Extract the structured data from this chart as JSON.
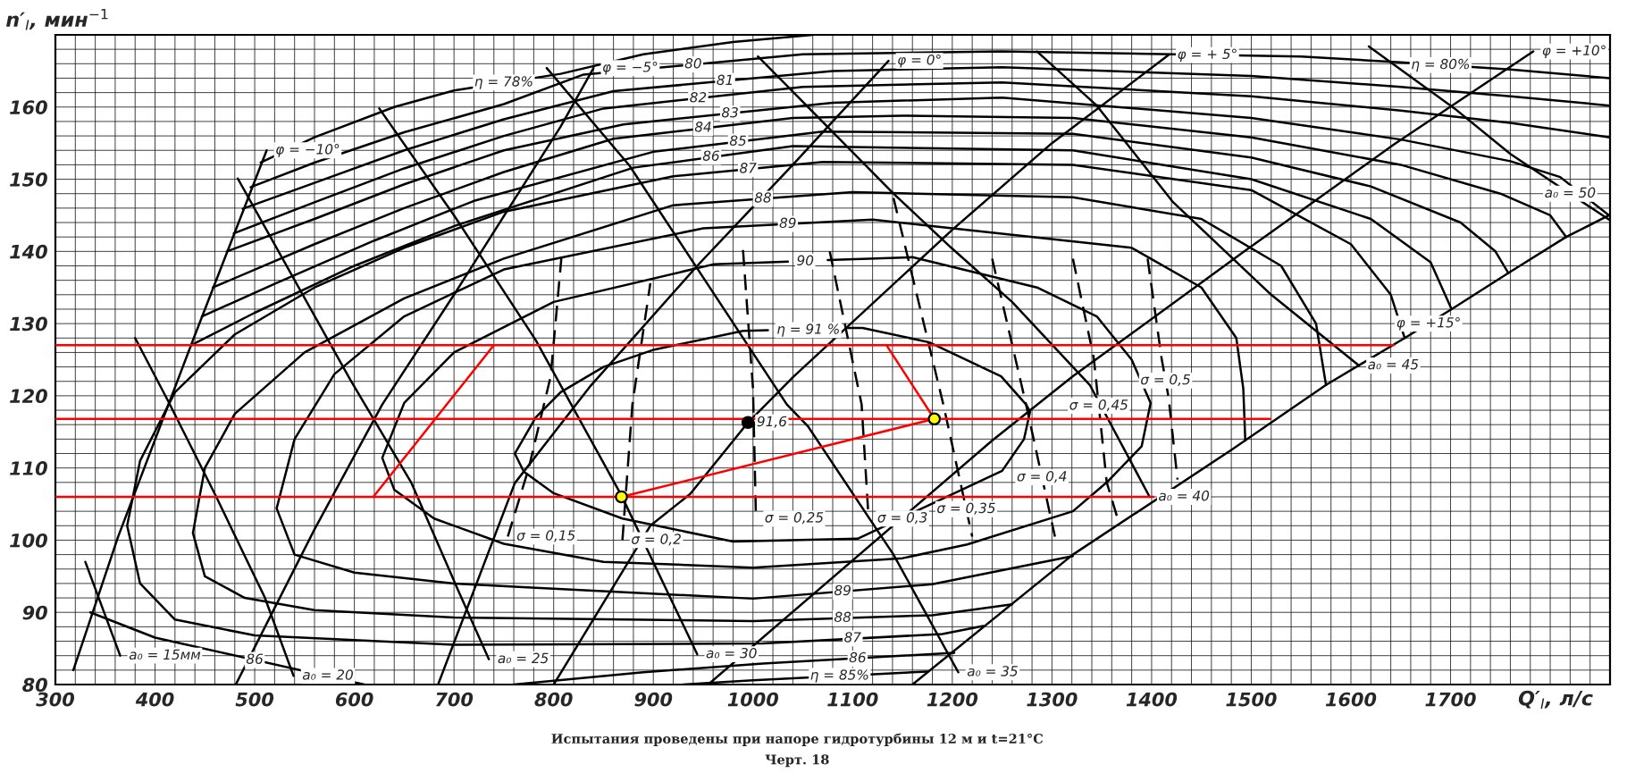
{
  "chart_data": {
    "type": "line",
    "xlabel": "Q′$_{I}$, л/с",
    "ylabel": "n′$_{I}$, мин$^{−1}$",
    "xlim": [
      300,
      1860
    ],
    "ylim": [
      80,
      170
    ],
    "grid": true,
    "xticks": [
      300,
      {
        "value": 320,
        "label": null
      },
      {
        "value": 340,
        "label": null
      },
      {
        "value": 360,
        "label": null
      },
      {
        "value": 380,
        "label": null
      },
      400,
      {
        "value": 420,
        "label": null
      },
      {
        "value": 440,
        "label": null
      },
      {
        "value": 460,
        "label": null
      },
      {
        "value": 480,
        "label": null
      },
      500,
      {
        "value": 520,
        "label": null
      },
      {
        "value": 540,
        "label": null
      },
      {
        "value": 560,
        "label": null
      },
      {
        "value": 580,
        "label": null
      },
      600,
      {
        "value": 620,
        "label": null
      },
      {
        "value": 640,
        "label": null
      },
      {
        "value": 660,
        "label": null
      },
      {
        "value": 680,
        "label": null
      },
      700,
      {
        "value": 720,
        "label": null
      },
      {
        "value": 740,
        "label": null
      },
      {
        "value": 760,
        "label": null
      },
      {
        "value": 780,
        "label": null
      },
      800,
      {
        "value": 820,
        "label": null
      },
      {
        "value": 840,
        "label": null
      },
      {
        "value": 860,
        "label": null
      },
      {
        "value": 880,
        "label": null
      },
      900,
      {
        "value": 920,
        "label": null
      },
      {
        "value": 940,
        "label": null
      },
      {
        "value": 960,
        "label": null
      },
      {
        "value": 980,
        "label": null
      },
      1000,
      {
        "value": 1020,
        "label": null
      },
      {
        "value": 1040,
        "label": null
      },
      {
        "value": 1060,
        "label": null
      },
      {
        "value": 1080,
        "label": null
      },
      1100,
      {
        "value": 1120,
        "label": null
      },
      {
        "value": 1140,
        "label": null
      },
      {
        "value": 1160,
        "label": null
      },
      {
        "value": 1180,
        "label": null
      },
      1200,
      {
        "value": 1220,
        "label": null
      },
      {
        "value": 1240,
        "label": null
      },
      {
        "value": 1260,
        "label": null
      },
      {
        "value": 1280,
        "label": null
      },
      1300,
      {
        "value": 1320,
        "label": null
      },
      {
        "value": 1340,
        "label": null
      },
      {
        "value": 1360,
        "label": null
      },
      {
        "value": 1380,
        "label": null
      },
      1400,
      {
        "value": 1420,
        "label": null
      },
      {
        "value": 1440,
        "label": null
      },
      {
        "value": 1460,
        "label": null
      },
      {
        "value": 1480,
        "label": null
      },
      1500,
      {
        "value": 1520,
        "label": null
      },
      {
        "value": 1540,
        "label": null
      },
      {
        "value": 1560,
        "label": null
      },
      {
        "value": 1580,
        "label": null
      },
      1600,
      {
        "value": 1620,
        "label": null
      },
      {
        "value": 1640,
        "label": null
      },
      {
        "value": 1660,
        "label": null
      },
      {
        "value": 1680,
        "label": null
      },
      1700,
      {
        "value": 1720,
        "label": null
      },
      {
        "value": 1740,
        "label": null
      },
      {
        "value": 1760,
        "label": null
      },
      {
        "value": 1780,
        "label": null
      },
      {
        "value": 1800,
        "label": null
      },
      {
        "value": 1820,
        "label": null
      },
      {
        "value": 1840,
        "label": null
      }
    ],
    "yticks": [
      80,
      {
        "value": 82,
        "label": null
      },
      {
        "value": 84,
        "label": null
      },
      {
        "value": 86,
        "label": null
      },
      {
        "value": 88,
        "label": null
      },
      90,
      {
        "value": 92,
        "label": null
      },
      {
        "value": 94,
        "label": null
      },
      {
        "value": 96,
        "label": null
      },
      {
        "value": 98,
        "label": null
      },
      100,
      {
        "value": 102,
        "label": null
      },
      {
        "value": 104,
        "label": null
      },
      {
        "value": 106,
        "label": null
      },
      {
        "value": 108,
        "label": null
      },
      110,
      {
        "value": 112,
        "label": null
      },
      {
        "value": 114,
        "label": null
      },
      {
        "value": 116,
        "label": null
      },
      {
        "value": 118,
        "label": null
      },
      120,
      {
        "value": 122,
        "label": null
      },
      {
        "value": 124,
        "label": null
      },
      {
        "value": 126,
        "label": null
      },
      {
        "value": 128,
        "label": null
      },
      130,
      {
        "value": 132,
        "label": null
      },
      {
        "value": 134,
        "label": null
      },
      {
        "value": 136,
        "label": null
      },
      {
        "value": 138,
        "label": null
      },
      140,
      {
        "value": 142,
        "label": null
      },
      {
        "value": 144,
        "label": null
      },
      {
        "value": 146,
        "label": null
      },
      {
        "value": 148,
        "label": null
      },
      150,
      {
        "value": 152,
        "label": null
      },
      {
        "value": 154,
        "label": null
      },
      {
        "value": 156,
        "label": null
      },
      {
        "value": 158,
        "label": null
      },
      160,
      {
        "value": 162,
        "label": null
      },
      {
        "value": 164,
        "label": null
      },
      {
        "value": 166,
        "label": null
      },
      {
        "value": 168,
        "label": null
      }
    ],
    "series": [
      {
        "color": "#000000",
        "x": [
          506,
          560,
          640,
          700,
          807,
          890,
          980,
          1060
        ],
        "values": [
          152.3,
          155.8,
          160,
          162.3,
          164.6,
          167.3,
          169,
          170
        ]
      },
      {
        "color": "#000000",
        "x": [
          496,
          560,
          650,
          750,
          830,
          1050,
          1250,
          1550,
          1650,
          1760,
          1860
        ],
        "values": [
          148.9,
          152.3,
          156.5,
          160.4,
          164.5,
          167.3,
          167.7,
          167,
          166.2,
          165.2,
          164
        ]
      },
      {
        "color": "#000000",
        "x": [
          488,
          560,
          650,
          750,
          860,
          1080,
          1250,
          1500,
          1650,
          1760,
          1860
        ],
        "values": [
          145.9,
          149.5,
          154,
          158.3,
          162.2,
          165,
          165.5,
          164.3,
          162.8,
          161.5,
          160.2
        ]
      },
      {
        "color": "#000000",
        "x": [
          479,
          560,
          650,
          750,
          850,
          1050,
          1250,
          1500,
          1650,
          1760,
          1860
        ],
        "values": [
          142.5,
          146.8,
          151.5,
          156,
          159.8,
          162.8,
          163.4,
          161.5,
          159.5,
          157.8,
          155.8
        ]
      },
      {
        "color": "#000000",
        "x": [
          472,
          560,
          650,
          750,
          870,
          1080,
          1250,
          1500,
          1650,
          1760,
          1810,
          1859
        ],
        "values": [
          140,
          144.5,
          149.3,
          154,
          157.6,
          160.6,
          161.3,
          158.5,
          155.5,
          152.5,
          150.3,
          145
        ]
      },
      {
        "color": "#000000",
        "x": [
          458,
          560,
          650,
          750,
          860,
          1040,
          1150,
          1321,
          1500,
          1650,
          1750,
          1800,
          1816
        ],
        "values": [
          135,
          141,
          146,
          151,
          155.6,
          158.5,
          158.8,
          158.5,
          155.8,
          152,
          148,
          145,
          142
        ]
      },
      {
        "color": "#000000",
        "x": [
          447,
          520,
          620,
          720,
          900,
          1070,
          1321,
          1500,
          1620,
          1710,
          1745,
          1758
        ],
        "values": [
          131,
          135.5,
          141.5,
          147,
          153.8,
          156.6,
          156.3,
          153,
          149,
          144,
          140,
          137
        ]
      },
      {
        "color": "#000000",
        "x": [
          930,
          1000,
          1175
        ],
        "values": [
          80,
          80.6,
          81.8
        ]
      },
      {
        "color": "#000000",
        "x": [
          436,
          500,
          600,
          700,
          880,
          1040,
          1321,
          1500,
          1620,
          1680,
          1701
        ],
        "values": [
          127,
          131.5,
          138,
          143.5,
          151.6,
          154.6,
          154,
          150,
          144.5,
          138.5,
          132
        ]
      },
      {
        "color": "#000000",
        "x": [
          335,
          400,
          610
        ],
        "values": [
          90,
          86.5,
          80
        ]
      },
      {
        "color": "#000000",
        "x": [
          760,
          890,
          1010,
          1202
        ],
        "values": [
          80,
          81.7,
          82.9,
          84.4
        ]
      },
      {
        "color": "#000000",
        "x": [
          1654,
          1640,
          1600,
          1500,
          1321,
          1070,
          920,
          750,
          650,
          560,
          480,
          420,
          385,
          372,
          385,
          420,
          500,
          700,
          1010,
          1190,
          1231
        ],
        "values": [
          128,
          134,
          141,
          148.5,
          152,
          152.4,
          150.4,
          145.5,
          140.5,
          135,
          128.5,
          120.5,
          111,
          102,
          94,
          89,
          86.8,
          85.5,
          85.7,
          87,
          88.1
        ]
      },
      {
        "color": "#000000",
        "x": [
          1575,
          1565,
          1530,
          1450,
          1321,
          1100,
          920,
          750,
          650,
          550,
          480,
          450,
          438,
          450,
          490,
          560,
          700,
          1000,
          1180,
          1260
        ],
        "values": [
          121.5,
          130,
          138,
          144.5,
          147.5,
          148.2,
          146.4,
          139,
          133.5,
          126,
          117.5,
          110,
          101,
          95,
          92,
          90.3,
          89.3,
          88.8,
          89.6,
          91.1
        ]
      },
      {
        "color": "#000000",
        "x": [
          1494,
          1492,
          1485,
          1450,
          1380,
          1227,
          1120,
          950,
          750,
          650,
          580,
          540,
          522,
          540,
          600,
          700,
          782,
          1000,
          1180,
          1321
        ],
        "values": [
          113.8,
          121,
          128,
          135,
          140.5,
          142.8,
          144.4,
          143.2,
          137.5,
          131,
          123,
          114,
          104.4,
          98,
          95.5,
          94,
          93.4,
          91.9,
          93.9,
          97.8
        ]
      },
      {
        "color": "#000000",
        "x": [
          1035,
          960,
          800,
          700,
          650,
          628,
          640,
          680,
          750,
          850,
          1000,
          1150,
          1215,
          1321,
          1355,
          1390,
          1399,
          1380,
          1345,
          1285,
          1160,
          1075
        ],
        "values": [
          138.6,
          138.2,
          133,
          126,
          119,
          111.4,
          107,
          103,
          99.5,
          97,
          96.2,
          97.5,
          99.4,
          104,
          108,
          113,
          119,
          125,
          131,
          135,
          139.2,
          138.8
        ]
      },
      {
        "color": "#000000",
        "x": [
          1015,
          990,
          901,
          850,
          807,
          782,
          761,
          770,
          800,
          869,
          980,
          1105,
          1250,
          1272,
          1278,
          1274,
          1249,
          1177,
          1110,
          1095
        ],
        "values": [
          129.1,
          129,
          126.4,
          124,
          120.5,
          117,
          112,
          109.5,
          106.5,
          103,
          99.8,
          100.2,
          109.6,
          114,
          117.8,
          118.8,
          122.7,
          127.4,
          129.4,
          129.4
        ]
      },
      {
        "color": "#000000",
        "x": [
          330,
          365
        ],
        "values": [
          97,
          84
        ]
      },
      {
        "color": "#000000",
        "x": [
          380,
          413,
          460,
          510,
          539
        ],
        "values": [
          128,
          119.3,
          106.4,
          92.1,
          81.2
        ]
      },
      {
        "color": "#000000",
        "x": [
          483,
          596,
          657,
          704,
          735
        ],
        "values": [
          150.1,
          122.2,
          108,
          93.1,
          83.5
        ]
      },
      {
        "color": "#000000",
        "x": [
          625,
          700,
          782,
          868,
          944
        ],
        "values": [
          159.8,
          145,
          127.7,
          106.2,
          84.2
        ]
      },
      {
        "color": "#000000",
        "x": [
          793,
          876,
          1034,
          1055,
          1141,
          1206
        ],
        "values": [
          165.4,
          151.9,
          118.8,
          115.8,
          98,
          81.7
        ]
      },
      {
        "color": "#000000",
        "x": [
          1005,
          1141,
          1199,
          1260,
          1338,
          1398
        ],
        "values": [
          167,
          148,
          140.5,
          133,
          121.5,
          106
        ]
      },
      {
        "color": "#000000",
        "x": [
          1285,
          1345,
          1421,
          1520,
          1608
        ],
        "values": [
          167.7,
          160.2,
          146.9,
          134,
          124.2
        ]
      },
      {
        "color": "#000000",
        "x": [
          1618,
          1704,
          1760,
          1859
        ],
        "values": [
          168.4,
          159.8,
          153.5,
          144.4
        ]
      },
      {
        "color": "#000000",
        "x": [
          318,
          363,
          438,
          512
        ],
        "values": [
          82,
          100.5,
          127.7,
          154
        ]
      },
      {
        "color": "#000000",
        "x": [
          481,
          560,
          628,
          700,
          807,
          840
        ],
        "values": [
          80,
          101.5,
          118.8,
          134,
          157.3,
          165.4
        ]
      },
      {
        "color": "#000000",
        "x": [
          684,
          761,
          836,
          944,
          1040,
          1136
        ],
        "values": [
          80,
          107.9,
          121.2,
          138,
          152,
          166.4
        ]
      },
      {
        "color": "#000000",
        "x": [
          800,
          897,
          937,
          995,
          1041,
          1200,
          1300,
          1417
        ],
        "values": [
          80,
          102,
          106.4,
          116.3,
          122.7,
          143,
          155,
          167.2
        ]
      },
      {
        "color": "#000000",
        "x": [
          955,
          1240,
          1321,
          1493,
          1643,
          1783
        ],
        "values": [
          80,
          113.8,
          122.7,
          140,
          154.8,
          167.7
        ]
      },
      {
        "color": "#000000",
        "x": [
          1160,
          1321,
          1480,
          1575,
          1654,
          1701,
          1758,
          1816,
          1859
        ],
        "values": [
          80,
          98,
          112.5,
          121.5,
          128,
          132,
          137,
          142,
          145
        ]
      },
      {
        "color": "#000000",
        "line_style": "dashed",
        "x": [
          754,
          775,
          797,
          808
        ],
        "values": [
          100.5,
          110,
          122.7,
          139.5
        ]
      },
      {
        "color": "#000000",
        "line_style": "dashed",
        "x": [
          869,
          879,
          897
        ],
        "values": [
          100,
          118.8,
          135.6
        ]
      },
      {
        "color": "#000000",
        "line_style": "dashed",
        "x": [
          990,
          1000,
          1003
        ],
        "values": [
          140.2,
          121,
          103
        ]
      },
      {
        "color": "#000000",
        "line_style": "dashed",
        "x": [
          1077,
          1109,
          1116
        ],
        "values": [
          140,
          118.8,
          103
        ]
      },
      {
        "color": "#000000",
        "line_style": "dashed",
        "x": [
          1141,
          1191,
          1220
        ],
        "values": [
          147.4,
          118.8,
          100.5
        ]
      },
      {
        "color": "#000000",
        "line_style": "dashed",
        "x": [
          1240,
          1274,
          1303
        ],
        "values": [
          139,
          118.8,
          100.5
        ]
      },
      {
        "color": "#000000",
        "line_style": "dashed",
        "x": [
          1321,
          1342,
          1355,
          1367
        ],
        "values": [
          139,
          125.2,
          108,
          102.5
        ]
      },
      {
        "color": "#000000",
        "line_style": "dashed",
        "x": [
          1396,
          1410,
          1417,
          1426
        ],
        "values": [
          139,
          125.2,
          119.8,
          108.4
        ]
      },
      {
        "color": "#ff0000",
        "x": [
          300,
          1643
        ],
        "values": [
          127,
          127
        ]
      },
      {
        "color": "#ff0000",
        "x": [
          300,
          1519
        ],
        "values": [
          116.8,
          116.8
        ]
      },
      {
        "color": "#ff0000",
        "x": [
          300,
          1402
        ],
        "values": [
          106,
          106
        ]
      },
      {
        "color": "#ff0000",
        "x": [
          619,
          740
        ],
        "values": [
          106,
          127
        ]
      },
      {
        "color": "#ff0000",
        "x": [
          1134,
          1182
        ],
        "values": [
          127,
          116.8
        ]
      },
      {
        "color": "#ff0000",
        "x": [
          868,
          1182
        ],
        "values": [
          106,
          116.8
        ]
      },
      {
        "type": "scatter",
        "marker": "circle",
        "colors": [
          "#ffff00",
          "#ffff00",
          "#000000"
        ],
        "x": [
          868,
          1182,
          995
        ],
        "values": [
          106,
          116.8,
          116.3
        ]
      }
    ],
    "annotations": [
      {
        "text": "η = 78%",
        "x": 750,
        "y": 163.4
      },
      {
        "text": "80",
        "x": 940,
        "y": 165.9
      },
      {
        "text": "81",
        "x": 972,
        "y": 163.6
      },
      {
        "text": "82",
        "x": 945,
        "y": 161.2
      },
      {
        "text": "83",
        "x": 977,
        "y": 159.1
      },
      {
        "text": "84",
        "x": 950,
        "y": 157.1
      },
      {
        "text": "85",
        "x": 985,
        "y": 155.2
      },
      {
        "text": "86",
        "x": 958,
        "y": 153.1
      },
      {
        "text": "87",
        "x": 995,
        "y": 151.4
      },
      {
        "text": "88",
        "x": 1010,
        "y": 147.3
      },
      {
        "text": "89",
        "x": 1035,
        "y": 143.8
      },
      {
        "text": "90",
        "x": 1035,
        "y": 138.6
      },
      {
        "text": "η = 91 %",
        "x": 1015,
        "y": 129.1
      },
      {
        "text": "η = 80%",
        "x": 1690,
        "y": 165.8
      },
      {
        "text": "86",
        "x": 500,
        "y": 83.4
      },
      {
        "text": "89",
        "x": 1090,
        "y": 92.9
      },
      {
        "text": "88",
        "x": 1090,
        "y": 89.2
      },
      {
        "text": "87",
        "x": 1100,
        "y": 86.4
      },
      {
        "text": "86",
        "x": 1105,
        "y": 83.6
      },
      {
        "text": "η = 85%",
        "x": 1087,
        "y": 81.2
      },
      {
        "text": "φ = −10°",
        "x": 512,
        "y": 154
      },
      {
        "text": "φ = −5°",
        "x": 840,
        "y": 165.4
      },
      {
        "text": "φ = 0°",
        "x": 1136,
        "y": 166.4
      },
      {
        "text": "φ = + 5°",
        "x": 1417,
        "y": 167.2
      },
      {
        "text": "φ = +10°",
        "x": 1783,
        "y": 167.7
      },
      {
        "text": "φ = +15°",
        "x": 1678,
        "y": 130
      },
      {
        "text": "a₀ = 15мм",
        "x": 365,
        "y": 84
      },
      {
        "text": "a₀ = 20",
        "x": 539,
        "y": 81.2
      },
      {
        "text": "a₀ = 25",
        "x": 735,
        "y": 83.5
      },
      {
        "text": "a₀ = 30",
        "x": 944,
        "y": 84.2
      },
      {
        "text": "a₀ = 35",
        "x": 1206,
        "y": 81.7
      },
      {
        "text": "a₀ = 40",
        "x": 1398,
        "y": 106
      },
      {
        "text": "a₀ = 45",
        "x": 1608,
        "y": 124.2
      },
      {
        "text": "a₀ = 50",
        "x": 1820,
        "y": 148
      },
      {
        "text": "σ = 0,15",
        "x": 754,
        "y": 100.5
      },
      {
        "text": "σ = 0,2",
        "x": 869,
        "y": 100
      },
      {
        "text": "σ = 0,25",
        "x": 1003,
        "y": 103
      },
      {
        "text": "σ = 0,3",
        "x": 1116,
        "y": 103
      },
      {
        "text": "σ = 0,35",
        "x": 1214,
        "y": 104.3
      },
      {
        "text": "σ = 0,4",
        "x": 1290,
        "y": 108.7
      },
      {
        "text": "σ = 0,45",
        "x": 1347,
        "y": 118.6
      },
      {
        "text": "σ = 0,5",
        "x": 1414,
        "y": 122.1
      },
      {
        "text": "91,6",
        "x": 995,
        "y": 116.3
      },
      "Испытания проведены при напоре гидротурбины 12 м и t=21°C",
      "Черт. 18"
    ]
  }
}
